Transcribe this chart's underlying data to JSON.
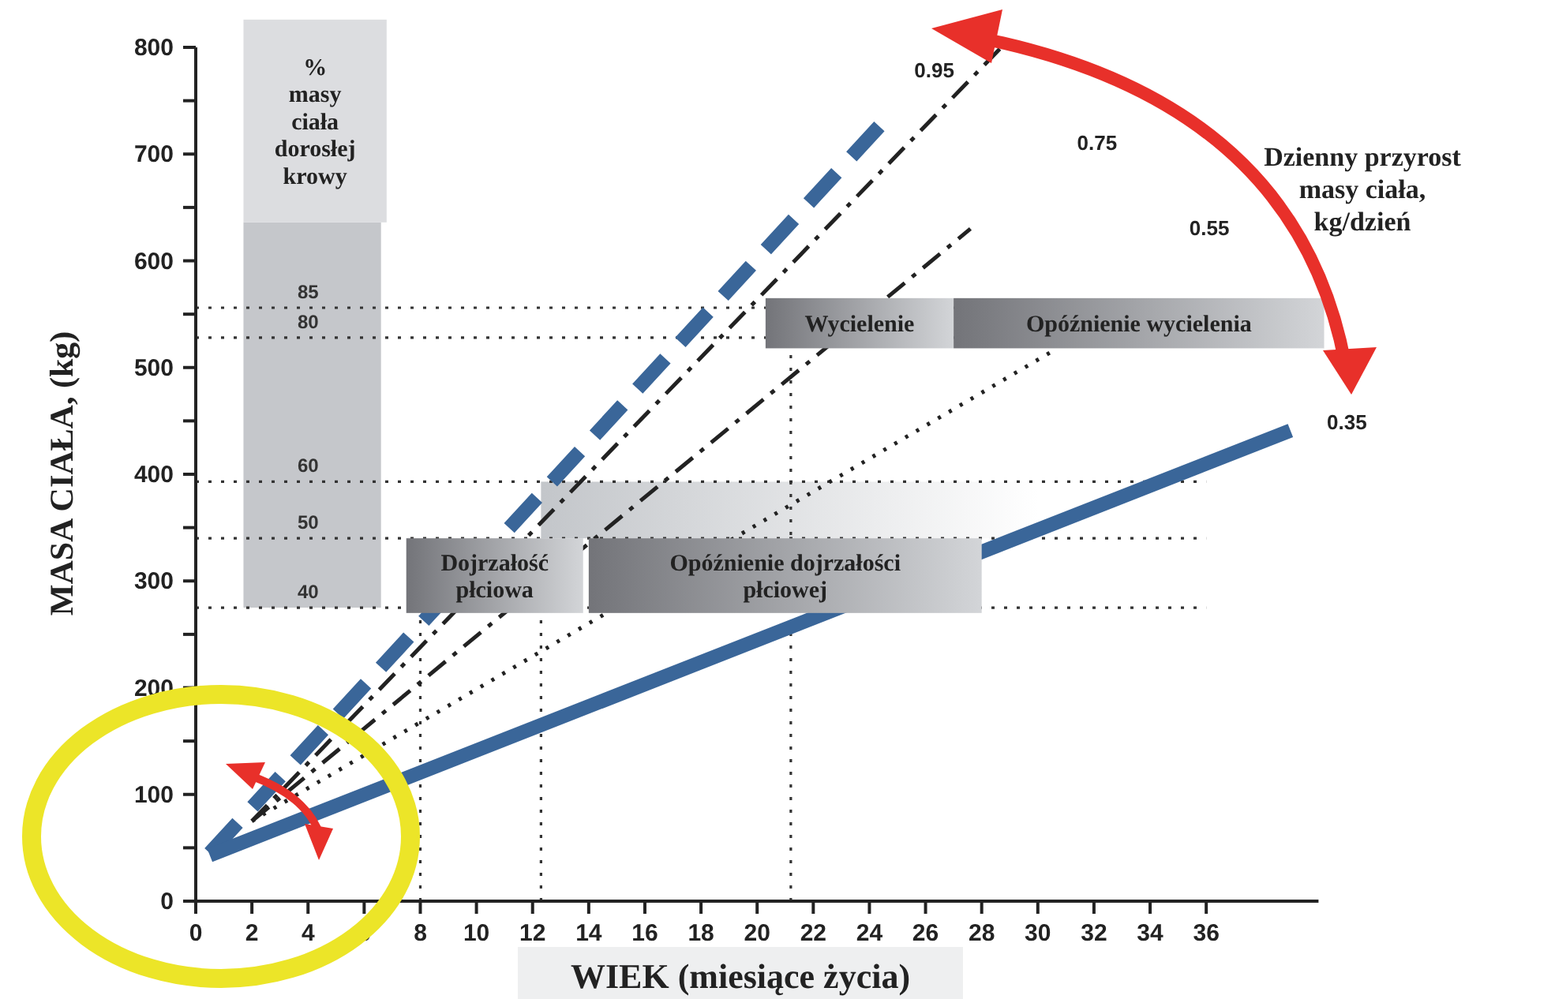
{
  "chart_data": {
    "type": "line",
    "xlabel": "WIEK (miesiące życia)",
    "ylabel": "MASA CIAŁA, (kg)",
    "xlim": [
      0,
      40
    ],
    "ylim": [
      0,
      800
    ],
    "xticks": [
      0,
      2,
      4,
      6,
      8,
      10,
      12,
      14,
      16,
      18,
      20,
      22,
      24,
      26,
      28,
      30,
      32,
      34,
      36
    ],
    "yticks": [
      0,
      {
        "value": 50,
        "label": null
      },
      100,
      {
        "value": 150,
        "label": null
      },
      200,
      {
        "value": 250,
        "label": null
      },
      300,
      {
        "value": 350,
        "label": null
      },
      400,
      {
        "value": 450,
        "label": null
      },
      500,
      {
        "value": 550,
        "label": null
      },
      600,
      {
        "value": 650,
        "label": null
      },
      700,
      {
        "value": 750,
        "label": null
      },
      800
    ],
    "ref_lines": [
      {
        "axis": "y",
        "value": 275,
        "line_style": "dotted",
        "color": "#333333"
      },
      {
        "axis": "y",
        "value": 340,
        "line_style": "dotted",
        "color": "#333333"
      },
      {
        "axis": "y",
        "value": 393,
        "line_style": "dotted",
        "color": "#333333"
      },
      {
        "axis": "y",
        "value": 528,
        "line_style": "dotted",
        "color": "#333333"
      },
      {
        "axis": "y",
        "value": 556,
        "line_style": "dotted",
        "color": "#333333"
      },
      {
        "axis": "x",
        "value": 8,
        "line_style": "dotted",
        "color": "#333333"
      },
      {
        "axis": "x",
        "value": 12.3,
        "line_style": "dotted",
        "color": "#333333"
      },
      {
        "axis": "x",
        "value": 21.2,
        "line_style": "dotted",
        "color": "#333333"
      }
    ],
    "series": [
      {
        "color": "#222222",
        "line_style": "dashdot",
        "x": [
          2,
          28.7
        ],
        "values": [
          75,
          800
        ]
      },
      {
        "name": "0.75",
        "color": "#222222",
        "line_style": "dashdot",
        "x": [
          2,
          27.6
        ],
        "values": [
          75,
          630
        ]
      },
      {
        "name": "0.55",
        "color": "#222222",
        "line_style": "dotted",
        "x": [
          2,
          30.5
        ],
        "values": [
          75,
          515
        ]
      },
      {
        "name": "0.95",
        "color": "#3a6699",
        "line_style": "dashed",
        "x": [
          0.5,
          24.6
        ],
        "values": [
          45,
          733
        ]
      },
      {
        "name": "0.35",
        "color": "#3a6699",
        "line_style": "solid",
        "x": [
          0.5,
          39
        ],
        "values": [
          43,
          441
        ]
      }
    ],
    "annotations": [
      "%\nmasy\nciała\ndorosłej\nkrowy",
      "Dojrzałość\npłciowa",
      "Opóźnienie dojrzałości\npłciowej",
      "Wycielenie",
      "Opóźnienie wycielenia",
      "Dzienny przyrost\nmasy ciała,\nkg/dzień",
      "40",
      "50",
      "60",
      "80",
      "85"
    ]
  }
}
